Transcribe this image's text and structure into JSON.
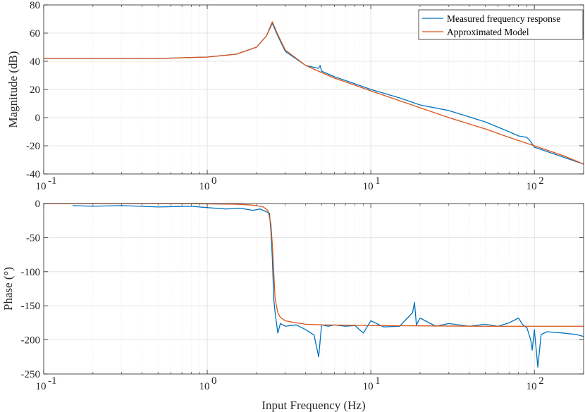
{
  "chart_data": [
    {
      "type": "line",
      "title": "",
      "xlabel": "",
      "ylabel": "Magnitude (dB)",
      "xscale": "log",
      "xlim": [
        0.1,
        200
      ],
      "ylim": [
        -40,
        80
      ],
      "grid": true,
      "yticks": [
        80,
        60,
        40,
        20,
        0,
        -20,
        -40
      ],
      "yticklabels": [
        "80",
        "60",
        "40",
        "20",
        "0",
        "-20",
        "-40"
      ],
      "xtick_bases": [
        "10",
        "10",
        "10",
        "10"
      ],
      "xtick_exponents": [
        "-1",
        "0",
        "1",
        "2"
      ],
      "legend_position": "top-right",
      "series": [
        {
          "name": "Measured frequency response",
          "color": "#0072BD",
          "x": [
            0.1,
            0.2,
            0.5,
            1.0,
            1.5,
            2.0,
            2.3,
            2.5,
            2.7,
            3.0,
            4.0,
            4.8,
            4.9,
            5.0,
            6.0,
            8.0,
            10.0,
            15.0,
            20.0,
            30.0,
            50.0,
            70.0,
            80.0,
            90.0,
            95.0,
            100.0,
            150.0,
            200.0
          ],
          "y": [
            42,
            42,
            42,
            43,
            45,
            50,
            58,
            67,
            58,
            47,
            37,
            35,
            37,
            33,
            29,
            24,
            20,
            14,
            9,
            5,
            -3,
            -10,
            -13,
            -14,
            -17,
            -21,
            -28,
            -33
          ]
        },
        {
          "name": "Approximated Model",
          "color": "#D95319",
          "x": [
            0.1,
            0.2,
            0.5,
            1.0,
            1.5,
            2.0,
            2.3,
            2.5,
            2.7,
            3.0,
            4.0,
            5.0,
            6.0,
            8.0,
            10.0,
            15.0,
            20.0,
            30.0,
            50.0,
            70.0,
            100.0,
            150.0,
            200.0
          ],
          "y": [
            42,
            42,
            42,
            43,
            45,
            50,
            58,
            68,
            59,
            48,
            37,
            32,
            28,
            23,
            19,
            12,
            7,
            0,
            -8,
            -14,
            -20,
            -27,
            -33
          ]
        }
      ]
    },
    {
      "type": "line",
      "title": "",
      "xlabel": "Input Frequency (Hz)",
      "ylabel": "Phase (°)",
      "xscale": "log",
      "xlim": [
        0.1,
        200
      ],
      "ylim": [
        -250,
        0
      ],
      "grid": true,
      "yticks": [
        0,
        -50,
        -100,
        -150,
        -200,
        -250
      ],
      "yticklabels": [
        "0",
        "-50",
        "-100",
        "-150",
        "-200",
        "-250"
      ],
      "xtick_bases": [
        "10",
        "10",
        "10",
        "10"
      ],
      "xtick_exponents": [
        "-1",
        "0",
        "1",
        "2"
      ],
      "series": [
        {
          "name": "Measured frequency response",
          "color": "#0072BD",
          "x": [
            0.15,
            0.2,
            0.3,
            0.5,
            0.8,
            1.0,
            1.3,
            1.6,
            1.9,
            2.1,
            2.3,
            2.4,
            2.45,
            2.5,
            2.55,
            2.6,
            2.7,
            2.8,
            3.0,
            3.5,
            4.0,
            4.5,
            4.8,
            5.0,
            5.5,
            6.0,
            7.0,
            8.0,
            9.0,
            10.0,
            12.0,
            15.0,
            18.0,
            18.5,
            19.0,
            20.0,
            25.0,
            30.0,
            40.0,
            50.0,
            60.0,
            70.0,
            80.0,
            85.0,
            90.0,
            95.0,
            97.0,
            100.0,
            105.0,
            110.0,
            120.0,
            150.0,
            180.0,
            200.0
          ],
          "y": [
            -3,
            -4,
            -3,
            -5,
            -4,
            -6,
            -8,
            -7,
            -10,
            -8,
            -12,
            -14,
            -40,
            -80,
            -140,
            -160,
            -190,
            -176,
            -180,
            -178,
            -185,
            -193,
            -225,
            -178,
            -180,
            -178,
            -180,
            -179,
            -190,
            -172,
            -181,
            -180,
            -160,
            -145,
            -178,
            -168,
            -180,
            -176,
            -180,
            -177,
            -180,
            -175,
            -168,
            -178,
            -182,
            -200,
            -215,
            -185,
            -240,
            -192,
            -188,
            -190,
            -192,
            -195
          ]
        },
        {
          "name": "Approximated Model",
          "color": "#D95319",
          "x": [
            0.1,
            0.3,
            0.5,
            1.0,
            1.5,
            1.8,
            2.0,
            2.2,
            2.35,
            2.45,
            2.5,
            2.55,
            2.6,
            2.7,
            2.8,
            3.0,
            3.5,
            4.0,
            5.0,
            10.0,
            50.0,
            100.0,
            200.0
          ],
          "y": [
            0,
            0,
            0,
            -0.5,
            -1,
            -2,
            -3,
            -5,
            -10,
            -30,
            -60,
            -100,
            -140,
            -160,
            -167,
            -172,
            -175,
            -177,
            -178,
            -179,
            -180,
            -180,
            -180
          ]
        }
      ]
    }
  ]
}
